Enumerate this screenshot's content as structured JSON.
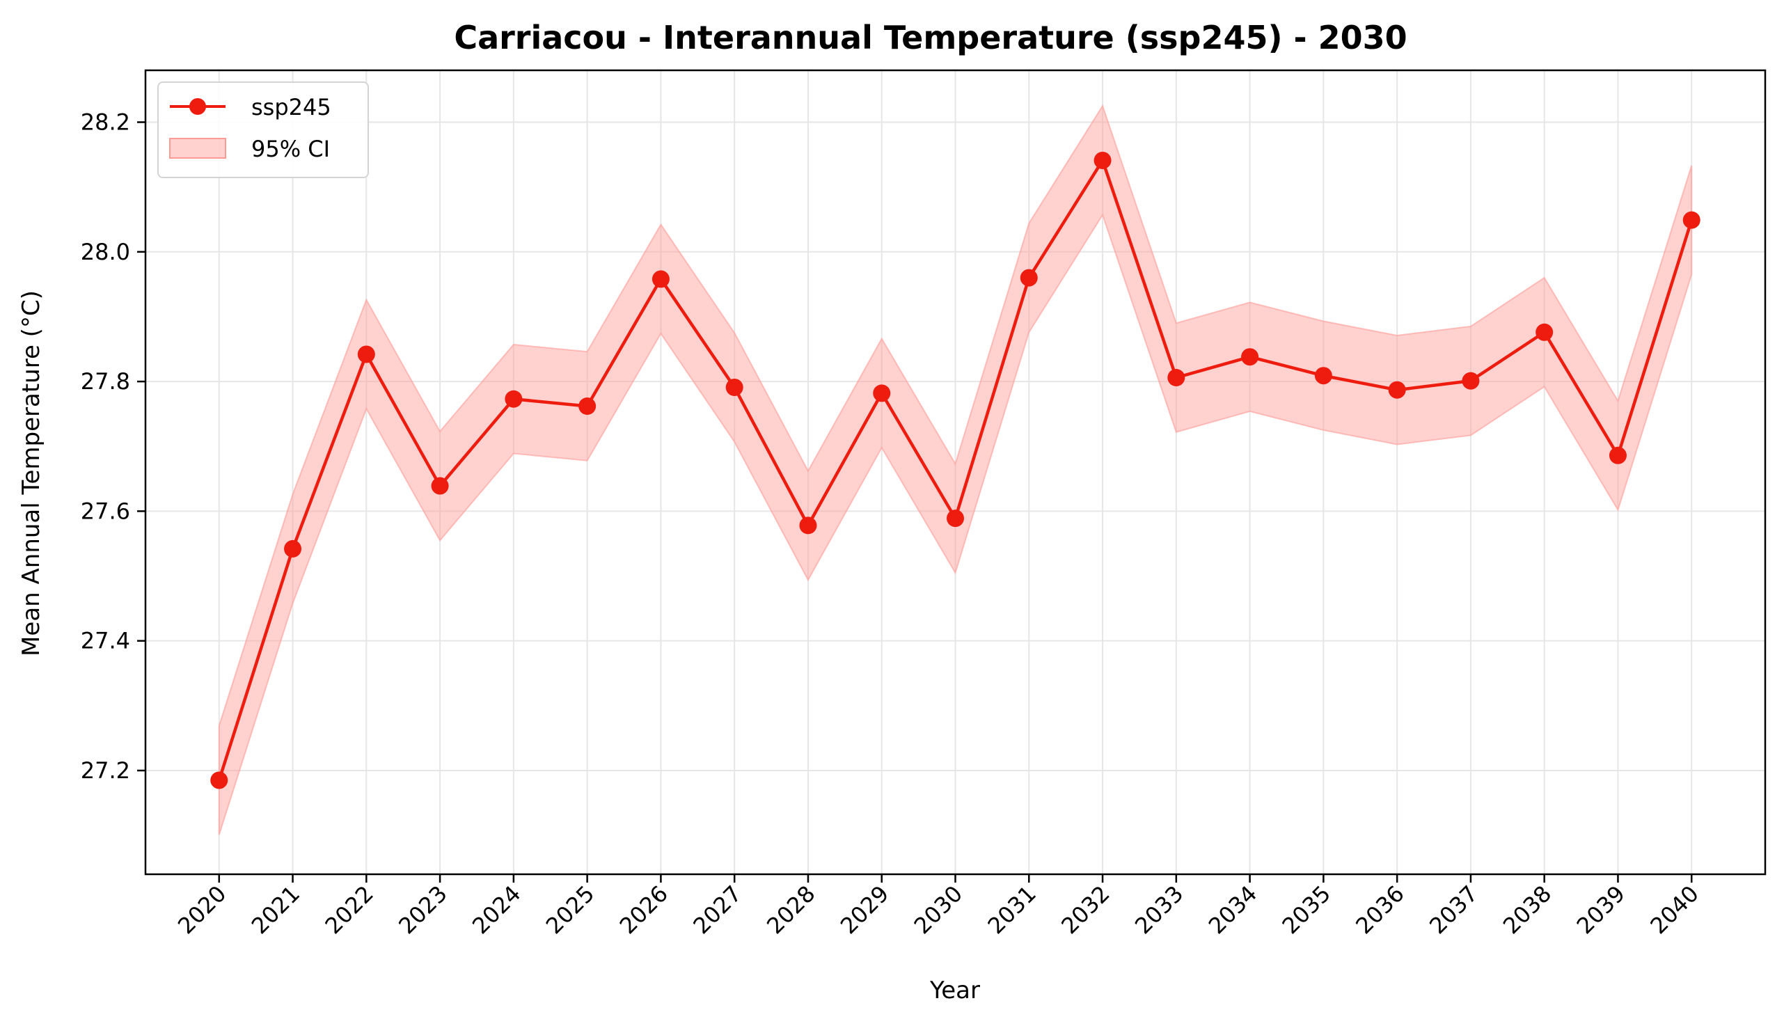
{
  "chart_data": {
    "type": "line",
    "title": "Carriacou - Interannual Temperature (ssp245) - 2030",
    "xlabel": "Year",
    "ylabel": "Mean Annual Temperature (°C)",
    "x": [
      2020,
      2021,
      2022,
      2023,
      2024,
      2025,
      2026,
      2027,
      2028,
      2029,
      2030,
      2031,
      2032,
      2033,
      2034,
      2035,
      2036,
      2037,
      2038,
      2039,
      2040
    ],
    "series": [
      {
        "name": "ssp245",
        "color": "#ee1c0e",
        "values": [
          27.185,
          27.542,
          27.842,
          27.639,
          27.773,
          27.762,
          27.958,
          27.791,
          27.578,
          27.782,
          27.589,
          27.96,
          28.141,
          27.806,
          27.838,
          27.809,
          27.787,
          27.801,
          27.876,
          27.686,
          28.049
        ]
      }
    ],
    "ci": {
      "name": "95% CI",
      "color": "#ff9b96",
      "lower": [
        27.101,
        27.458,
        27.758,
        27.555,
        27.689,
        27.678,
        27.874,
        27.707,
        27.494,
        27.698,
        27.505,
        27.876,
        28.057,
        27.722,
        27.754,
        27.725,
        27.703,
        27.717,
        27.792,
        27.602,
        27.965
      ],
      "upper": [
        27.269,
        27.626,
        27.926,
        27.723,
        27.857,
        27.846,
        28.042,
        27.875,
        27.662,
        27.866,
        27.673,
        28.044,
        28.225,
        27.89,
        27.922,
        27.893,
        27.871,
        27.885,
        27.96,
        27.77,
        28.133
      ]
    },
    "yticks": [
      27.2,
      27.4,
      27.6,
      27.8,
      28.0,
      28.2
    ],
    "ylim": [
      27.04,
      28.28
    ],
    "xlim": [
      2019,
      2041
    ],
    "grid": true,
    "legend_position": "top-left"
  }
}
